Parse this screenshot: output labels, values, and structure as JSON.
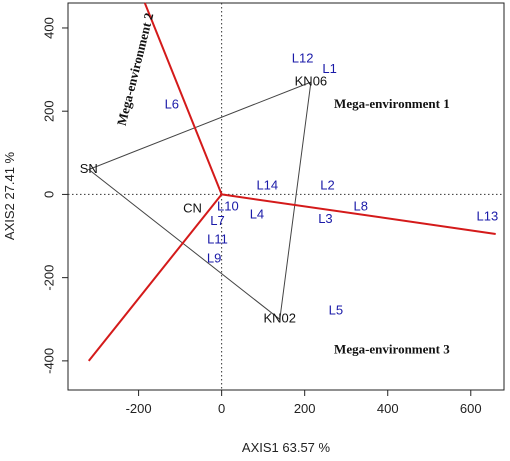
{
  "chart_data": {
    "type": "scatter",
    "subtype": "GGE biplot (which-won-where polygon)",
    "xlabel": "AXIS1 63.57 %",
    "ylabel": "AXIS2 27.41 %",
    "xlim": [
      -370,
      680
    ],
    "ylim": [
      -470,
      460
    ],
    "x_ticks": [
      -200,
      0,
      200,
      400,
      600
    ],
    "y_ticks": [
      -400,
      -200,
      0,
      200,
      400
    ],
    "grid": false,
    "reference_lines": "dotted lines at x = 0 and y = 0",
    "genotypes": [
      {
        "label": "L1",
        "x": 260,
        "y": 300
      },
      {
        "label": "L2",
        "x": 255,
        "y": 20
      },
      {
        "label": "L3",
        "x": 250,
        "y": -60
      },
      {
        "label": "L4",
        "x": 85,
        "y": -50
      },
      {
        "label": "L5",
        "x": 275,
        "y": -280
      },
      {
        "label": "L6",
        "x": -120,
        "y": 215
      },
      {
        "label": "L7",
        "x": -10,
        "y": -65
      },
      {
        "label": "L8",
        "x": 335,
        "y": -30
      },
      {
        "label": "L9",
        "x": -18,
        "y": -155
      },
      {
        "label": "L10",
        "x": 15,
        "y": -30
      },
      {
        "label": "L11",
        "x": -10,
        "y": -110
      },
      {
        "label": "L12",
        "x": 195,
        "y": 325
      },
      {
        "label": "L13",
        "x": 640,
        "y": -55
      },
      {
        "label": "L14",
        "x": 110,
        "y": 20
      }
    ],
    "environments": [
      {
        "label": "KN06",
        "x": 215,
        "y": 270
      },
      {
        "label": "SN",
        "x": -320,
        "y": 60
      },
      {
        "label": "KN02",
        "x": 140,
        "y": -300
      },
      {
        "label": "CN",
        "x": -70,
        "y": -35
      }
    ],
    "polygon": [
      [
        215,
        270
      ],
      [
        -320,
        60
      ],
      [
        140,
        -300
      ]
    ],
    "sector_rays": [
      {
        "from": [
          0,
          0
        ],
        "to": [
          -185,
          460
        ]
      },
      {
        "from": [
          0,
          0
        ],
        "to": [
          -320,
          -400
        ]
      },
      {
        "from": [
          0,
          0
        ],
        "to": [
          660,
          -95
        ]
      }
    ],
    "mega_environments": [
      {
        "label": "Mega-environment 1",
        "x": 410,
        "y": 215,
        "rotation": 0
      },
      {
        "label": "Mega-environment 2",
        "x": -205,
        "y": 300,
        "rotation": -76
      },
      {
        "label": "Mega-environment 3",
        "x": 410,
        "y": -375,
        "rotation": 0
      }
    ],
    "colors": {
      "genotype": "#1a1aa8",
      "environment": "#111111",
      "sector_ray": "#d41a1a",
      "polygon": "#444444"
    }
  }
}
